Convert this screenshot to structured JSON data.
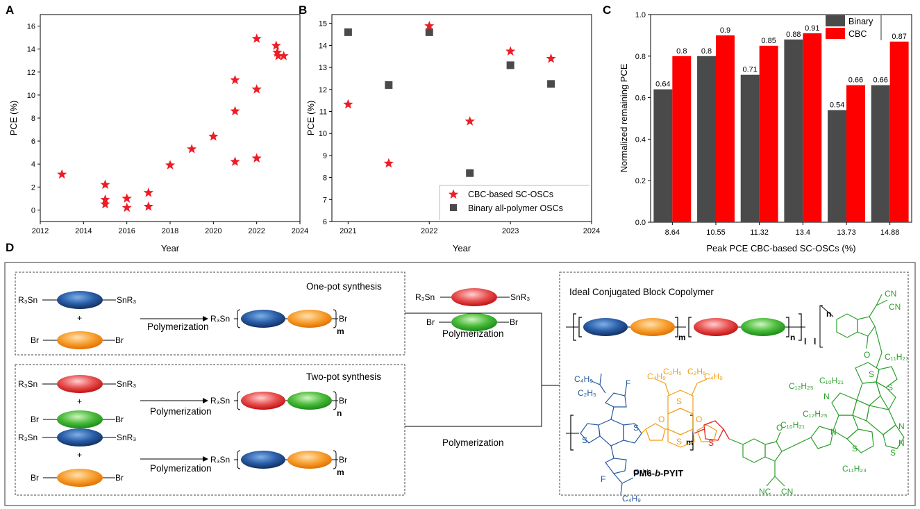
{
  "colors": {
    "star": "#ee1c25",
    "binary": "#4a4a4a",
    "cbc": "#ff0000",
    "blue": "#1f4f9c",
    "orange": "#f7941d",
    "red": "#e0202a",
    "green": "#2ca02c",
    "struct_blue": "#2458a0",
    "struct_orange": "#f39c12",
    "struct_red": "#e02020",
    "struct_green": "#2ca02c"
  },
  "chart_data": [
    {
      "panel": "A",
      "type": "scatter",
      "xlabel": "Year",
      "ylabel": "PCE (%)",
      "xlim": [
        2012,
        2024
      ],
      "ylim": [
        -1,
        17
      ],
      "xticks": [
        2012,
        2014,
        2016,
        2018,
        2020,
        2022,
        2024
      ],
      "yticks": [
        0,
        2,
        4,
        6,
        8,
        10,
        12,
        14,
        16
      ],
      "points": [
        [
          2013,
          3.1
        ],
        [
          2015,
          2.2
        ],
        [
          2015,
          0.9
        ],
        [
          2015,
          0.5
        ],
        [
          2016,
          1.0
        ],
        [
          2016,
          0.2
        ],
        [
          2017,
          1.5
        ],
        [
          2017,
          0.3
        ],
        [
          2018,
          3.9
        ],
        [
          2019,
          5.3
        ],
        [
          2020,
          6.4
        ],
        [
          2021,
          11.3
        ],
        [
          2021,
          8.6
        ],
        [
          2021,
          4.2
        ],
        [
          2022,
          14.9
        ],
        [
          2022,
          10.5
        ],
        [
          2022,
          4.5
        ],
        [
          2022.9,
          14.3
        ],
        [
          2022.95,
          13.7
        ],
        [
          2023.0,
          13.4
        ],
        [
          2023.25,
          13.4
        ]
      ]
    },
    {
      "panel": "B",
      "type": "scatter",
      "xlabel": "Year",
      "ylabel": "PCE (%)",
      "xlim": [
        2020.8,
        2024
      ],
      "ylim": [
        6,
        15.4
      ],
      "xticks": [
        2021,
        2022,
        2023,
        2024
      ],
      "yticks": [
        6,
        7,
        8,
        9,
        10,
        11,
        12,
        13,
        14,
        15
      ],
      "series": [
        {
          "name": "CBC-based SC-OSCs",
          "marker": "star",
          "x": [
            2021,
            2021.5,
            2022,
            2022.5,
            2023,
            2023.5
          ],
          "y": [
            11.32,
            8.64,
            14.88,
            10.55,
            13.73,
            13.4
          ]
        },
        {
          "name": "Binary all-polymer OSCs",
          "marker": "square",
          "x": [
            2021,
            2021.5,
            2022,
            2022.5,
            2023,
            2023.5
          ],
          "y": [
            14.6,
            12.2,
            14.6,
            8.2,
            13.1,
            12.25
          ]
        }
      ]
    },
    {
      "panel": "C",
      "type": "bar",
      "xlabel": "Peak PCE CBC-based SC-OSCs (%)",
      "ylabel": "Normalized remaining PCE",
      "ylim": [
        0,
        1.0
      ],
      "yticks": [
        "0.0",
        "0.2",
        "0.4",
        "0.6",
        "0.8",
        "1.0"
      ],
      "categories": [
        "8.64",
        "10.55",
        "11.32",
        "13.4",
        "13.73",
        "14.88"
      ],
      "series": [
        {
          "name": "Binary",
          "values": [
            0.64,
            0.8,
            0.71,
            0.88,
            0.54,
            0.66
          ],
          "labels": [
            "0.64",
            "0.8",
            "0.71",
            "0.88",
            "0.54",
            "0.66"
          ]
        },
        {
          "name": "CBC",
          "values": [
            0.8,
            0.9,
            0.85,
            0.91,
            0.66,
            0.87
          ],
          "labels": [
            "0.8",
            "0.9",
            "0.85",
            "0.91",
            "0.66",
            "0.87"
          ]
        }
      ]
    }
  ],
  "panels": {
    "a": "A",
    "b": "B",
    "c": "C",
    "d": "D"
  },
  "scheme": {
    "one_pot": "One-pot synthesis",
    "two_pot": "Two-pot synthesis",
    "polymerization": "Polymerization",
    "ideal": "Ideal Conjugated Block Copolymer",
    "r3sn": "R₃Sn",
    "snr3": "SnR₃",
    "br": "Br",
    "plus": "+",
    "m": "m",
    "n": "n",
    "l": "l",
    "polymer_name_pre": "PM6-",
    "polymer_name_b": "b",
    "polymer_name_post": "-PYIT",
    "sub_labels": {
      "c4h9": "C₄H₉",
      "c2h5": "C₂H₅",
      "c12h25": "C₁₂H₂₅",
      "c10h21": "C₁₀H₂₁",
      "c11h23": "C₁₁H₂₃",
      "f": "F",
      "s": "S",
      "o": "O",
      "n_atom": "N",
      "cn": "CN",
      "nc": "NC"
    }
  }
}
